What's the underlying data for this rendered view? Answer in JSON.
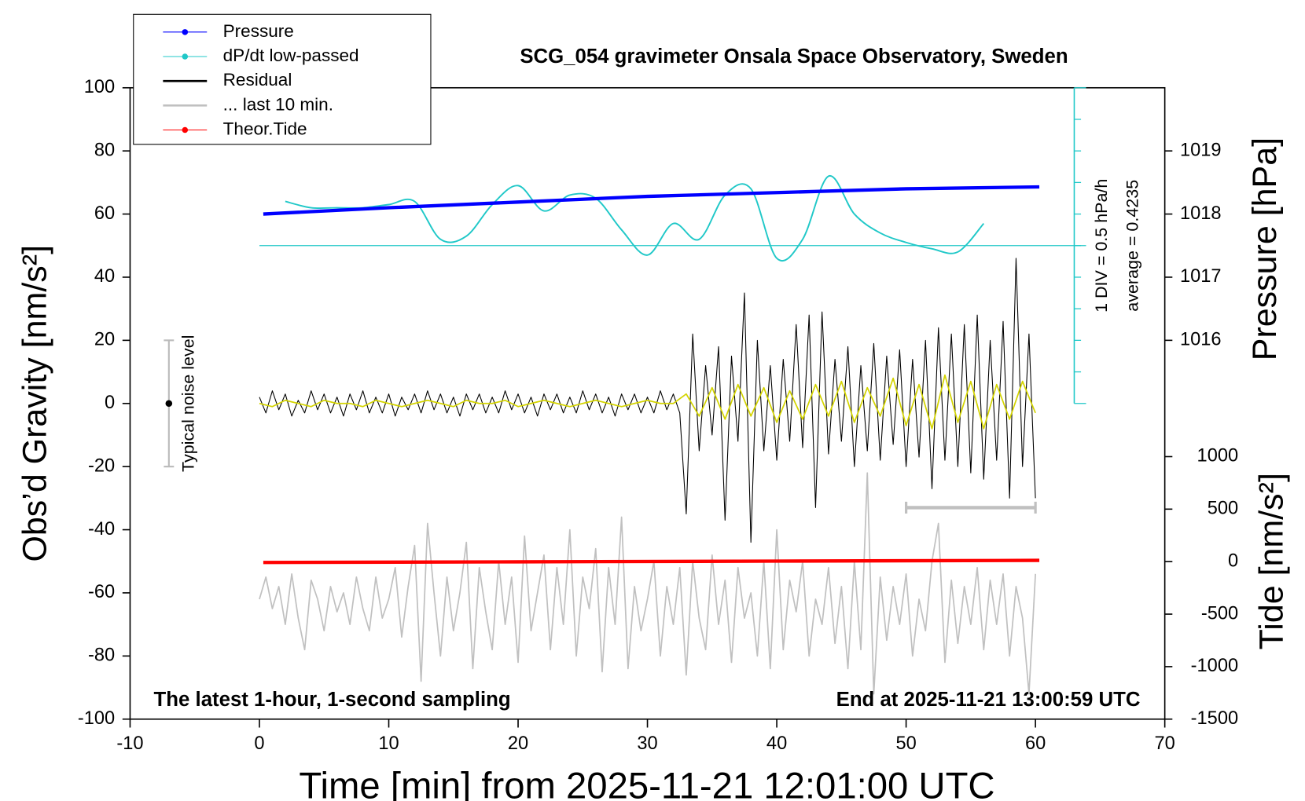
{
  "chart_data": {
    "type": "line",
    "title": "SCG_054 gravimeter Onsala Space Observatory, Sweden",
    "x_label": "Time [min] from 2025-11-21 12:01:00 UTC",
    "y_label": "Obs’d Gravity [nm/s²]",
    "y2_label": "Pressure [hPa]",
    "tide_label": "Tide [nm/s²]",
    "annotation_left": "The latest 1-hour, 1-second sampling",
    "annotation_right": "End at 2025-11-21 13:00:59 UTC",
    "dpdt_div_label": "1 DIV = 0.5 hPa/h",
    "dpdt_average_label": "average = 0.4235",
    "xlim": [
      -10,
      70
    ],
    "xticks": [
      -10,
      0,
      10,
      20,
      30,
      40,
      50,
      60,
      70
    ],
    "ylim": [
      -100,
      100
    ],
    "yticks": [
      -100,
      -80,
      -60,
      -40,
      -20,
      0,
      20,
      40,
      60,
      80,
      100
    ],
    "y2lim": [
      1015,
      1020
    ],
    "y2ticks": [
      1016,
      1017,
      1018,
      1019
    ],
    "dpdt_lim": [
      -2.5,
      2.5
    ],
    "dpdt_ticks": [
      -2.5,
      -2,
      -1.5,
      -1,
      -0.5,
      0,
      0.5,
      1,
      1.5,
      2,
      2.5
    ],
    "tide_lim": [
      -1500,
      1000
    ],
    "tide_ticks": [
      -1500,
      -1000,
      -500,
      0,
      500,
      1000
    ],
    "noise_bar": {
      "label": "Typical noise level",
      "x": -7,
      "low": -20,
      "center": 0,
      "high": 20
    },
    "last10_bar": {
      "x": [
        50,
        60
      ],
      "y": -33
    },
    "x": [
      0,
      0.5,
      1,
      1.5,
      2,
      2.5,
      3,
      3.5,
      4,
      4.5,
      5,
      5.5,
      6,
      6.5,
      7,
      7.5,
      8,
      8.5,
      9,
      9.5,
      10,
      10.5,
      11,
      11.5,
      12,
      12.5,
      13,
      13.5,
      14,
      14.5,
      15,
      15.5,
      16,
      16.5,
      17,
      17.5,
      18,
      18.5,
      19,
      19.5,
      20,
      20.5,
      21,
      21.5,
      22,
      22.5,
      23,
      23.5,
      24,
      24.5,
      25,
      25.5,
      26,
      26.5,
      27,
      27.5,
      28,
      28.5,
      29,
      29.5,
      30,
      30.5,
      31,
      31.5,
      32,
      32.5,
      33,
      33.5,
      34,
      34.5,
      35,
      35.5,
      36,
      36.5,
      37,
      37.5,
      38,
      38.5,
      39,
      39.5,
      40,
      40.5,
      41,
      41.5,
      42,
      42.5,
      43,
      43.5,
      44,
      44.5,
      45,
      45.5,
      46,
      46.5,
      47,
      47.5,
      48,
      48.5,
      49,
      49.5,
      50,
      50.5,
      51,
      51.5,
      52,
      52.5,
      53,
      53.5,
      54,
      54.5,
      55,
      55.5,
      56,
      56.5,
      57,
      57.5,
      58,
      58.5,
      59,
      59.5,
      60
    ],
    "series": [
      {
        "name": "Pressure",
        "color": "#0000ff",
        "axis": "y2",
        "legend_marker": "dot",
        "width": 4,
        "x": [
          0.3,
          10,
          20,
          30,
          40,
          50,
          60.3
        ],
        "values": [
          1018.0,
          1018.1,
          1018.19,
          1018.28,
          1018.34,
          1018.4,
          1018.43
        ]
      },
      {
        "name": "dP/dt low-passed",
        "color": "#20c8c8",
        "axis": "dpdt",
        "legend_marker": "dot",
        "width": 1.8,
        "x": [
          2,
          4,
          6,
          8,
          10,
          12,
          14,
          16,
          18,
          20,
          22,
          24,
          26,
          28,
          30,
          32,
          34,
          36,
          38,
          40,
          42,
          44,
          46,
          48,
          50,
          52,
          54,
          56
        ],
        "values": [
          0.7,
          0.6,
          0.6,
          0.6,
          0.65,
          0.7,
          0.1,
          0.15,
          0.65,
          0.95,
          0.55,
          0.8,
          0.75,
          0.25,
          -0.15,
          0.35,
          0.1,
          0.8,
          0.9,
          -0.2,
          0.1,
          1.1,
          0.5,
          0.2,
          0.05,
          -0.05,
          -0.1,
          0.35
        ]
      },
      {
        "name": "Residual",
        "color": "#000000",
        "axis": "y",
        "width": 1,
        "values": [
          2,
          -3,
          4,
          -2,
          3,
          -4,
          1,
          -3,
          4,
          -2,
          3,
          -3,
          2,
          -4,
          3,
          -2,
          4,
          -3,
          2,
          -3,
          3,
          -4,
          2,
          -2,
          3,
          -3,
          4,
          -2,
          3,
          -3,
          2,
          -4,
          3,
          -2,
          3,
          -3,
          2,
          -3,
          4,
          -2,
          3,
          -3,
          2,
          -4,
          3,
          -2,
          3,
          -3,
          2,
          -3,
          4,
          -2,
          3,
          -3,
          2,
          -4,
          3,
          -2,
          3,
          -3,
          2,
          -3,
          4,
          -2,
          3,
          -3,
          -35,
          22,
          -15,
          12,
          -10,
          18,
          -37,
          15,
          -12,
          35,
          -44,
          20,
          -15,
          12,
          -18,
          14,
          -12,
          25,
          -14,
          28,
          -33,
          29,
          -16,
          14,
          -12,
          18,
          -20,
          12,
          -15,
          19,
          -18,
          15,
          -13,
          17,
          -20,
          14,
          -17,
          20,
          -27,
          24,
          -18,
          22,
          -20,
          25,
          -22,
          28,
          -24,
          20,
          -18,
          26,
          -30,
          46,
          -20,
          22,
          -30
        ]
      },
      {
        "name": "... last 10 min.",
        "color": "#c0c0c0",
        "axis": "y",
        "width": 1.6,
        "values": [
          -62,
          -55,
          -65,
          -58,
          -70,
          -54,
          -68,
          -78,
          -56,
          -62,
          -72,
          -58,
          -66,
          -60,
          -70,
          -55,
          -65,
          -72,
          -55,
          -68,
          -62,
          -52,
          -74,
          -58,
          -45,
          -88,
          -38,
          -60,
          -80,
          -55,
          -72,
          -60,
          -44,
          -84,
          -52,
          -66,
          -78,
          -50,
          -70,
          -55,
          -82,
          -42,
          -72,
          -60,
          -48,
          -78,
          -52,
          -70,
          -40,
          -80,
          -55,
          -65,
          -46,
          -85,
          -52,
          -70,
          -36,
          -84,
          -58,
          -72,
          -62,
          -50,
          -80,
          -58,
          -70,
          -52,
          -86,
          -50,
          -68,
          -78,
          -48,
          -70,
          -56,
          -82,
          -52,
          -68,
          -60,
          -80,
          -50,
          -84,
          -40,
          -78,
          -56,
          -66,
          -50,
          -80,
          -62,
          -70,
          -52,
          -76,
          -58,
          -84,
          -50,
          -78,
          -22,
          -92,
          -55,
          -75,
          -58,
          -70,
          -54,
          -80,
          -62,
          -72,
          -50,
          -38,
          -82,
          -56,
          -76,
          -58,
          -70,
          -52,
          -78,
          -56,
          -70,
          -54,
          -80,
          -58,
          -68,
          -92,
          -54
        ]
      },
      {
        "name": "Theor.Tide",
        "color": "#ff0000",
        "axis": "tide",
        "legend_marker": "dot",
        "width": 4,
        "x": [
          0.3,
          20,
          40,
          60.3
        ],
        "values": [
          -8,
          -2,
          5,
          12
        ]
      },
      {
        "color": "#d4d400",
        "axis": "y",
        "width": 1.6,
        "x": [
          0,
          1,
          2,
          3,
          4,
          5,
          6,
          7,
          8,
          9,
          10,
          11,
          12,
          13,
          14,
          15,
          16,
          17,
          18,
          19,
          20,
          21,
          22,
          23,
          24,
          25,
          26,
          27,
          28,
          29,
          30,
          31,
          32,
          33,
          34,
          35,
          36,
          37,
          38,
          39,
          40,
          41,
          42,
          43,
          44,
          45,
          46,
          47,
          48,
          49,
          50,
          51,
          52,
          53,
          54,
          55,
          56,
          57,
          58,
          59,
          60
        ],
        "values": [
          0,
          -1,
          1,
          0,
          -1,
          1,
          0,
          0,
          -1,
          1,
          0,
          -1,
          0,
          1,
          0,
          -1,
          1,
          0,
          0,
          1,
          -1,
          0,
          1,
          0,
          -1,
          0,
          1,
          0,
          -1,
          0,
          1,
          0,
          0,
          3,
          -4,
          5,
          -5,
          6,
          -4,
          5,
          -6,
          4,
          -5,
          6,
          -4,
          7,
          -6,
          5,
          -4,
          8,
          -7,
          6,
          -8,
          9,
          -6,
          7,
          -8,
          6,
          -5,
          7,
          -3
        ]
      }
    ]
  }
}
